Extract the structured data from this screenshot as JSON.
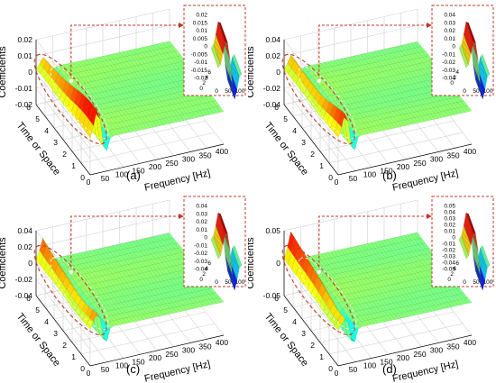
{
  "chart_data": [
    {
      "type": "surface",
      "panel_label": "(a)",
      "zlabel": "Coefficients",
      "ylabel": "Time or Space",
      "xlabel": "Frequency [Hz]",
      "zticks": [
        "0.02",
        "0.01",
        "0",
        "-0.01",
        "-0.02"
      ],
      "yticks": [
        "0",
        "1",
        "2",
        "3",
        "4",
        "5",
        "6"
      ],
      "xticks": [
        "0",
        "50",
        "100",
        "150",
        "200",
        "250",
        "300",
        "350",
        "400"
      ],
      "zlim": [
        -0.02,
        0.02
      ],
      "ylim": [
        0,
        6
      ],
      "xlim": [
        0,
        400
      ],
      "inset": {
        "zticks": [
          "0.02",
          "0.015",
          "0.01",
          "0.005",
          "0",
          "-0.005",
          "-0.01",
          "-0.015",
          "-0.02"
        ],
        "xticks": [
          "0",
          "50",
          "100"
        ],
        "yticks": [
          "6",
          "4",
          "2",
          "0"
        ]
      }
    },
    {
      "type": "surface",
      "panel_label": "(b)",
      "zlabel": "Coefficients",
      "ylabel": "Time or Space",
      "xlabel": "Frequency [Hz]",
      "zticks": [
        "0.04",
        "0.02",
        "0",
        "-0.02",
        "-0.04"
      ],
      "yticks": [
        "0",
        "1",
        "2",
        "3",
        "4",
        "5",
        "6"
      ],
      "xticks": [
        "0",
        "50",
        "100",
        "150",
        "200",
        "250",
        "300",
        "350",
        "400"
      ],
      "zlim": [
        -0.04,
        0.04
      ],
      "ylim": [
        0,
        6
      ],
      "xlim": [
        0,
        400
      ],
      "inset": {
        "zticks": [
          "0.04",
          "0.03",
          "0.02",
          "0.01",
          "0",
          "-0.01",
          "-0.02",
          "-0.03",
          "-0.04"
        ],
        "xticks": [
          "0",
          "50",
          "100"
        ],
        "yticks": [
          "4",
          "2",
          "0"
        ]
      }
    },
    {
      "type": "surface",
      "panel_label": "(c)",
      "zlabel": "Coefficients",
      "ylabel": "Time or Space",
      "xlabel": "Frequency [Hz]",
      "zticks": [
        "0.04",
        "0.02",
        "0",
        "-0.02",
        "-0.04"
      ],
      "yticks": [
        "0",
        "1",
        "2",
        "3",
        "4",
        "5",
        "6"
      ],
      "xticks": [
        "0",
        "50",
        "100",
        "150",
        "200",
        "250",
        "300",
        "350",
        "400"
      ],
      "zlim": [
        -0.04,
        0.04
      ],
      "ylim": [
        0,
        6
      ],
      "xlim": [
        0,
        400
      ],
      "inset": {
        "zticks": [
          "0.04",
          "0.03",
          "0.02",
          "0.01",
          "0",
          "-0.01",
          "-0.02",
          "-0.03",
          "-0.04"
        ],
        "xticks": [
          "0",
          "50",
          "100"
        ],
        "yticks": [
          "6",
          "4",
          "2",
          "0"
        ]
      }
    },
    {
      "type": "surface",
      "panel_label": "(d)",
      "zlabel": "Coefficients",
      "ylabel": "Time or Space",
      "xlabel": "Frequency [Hz]",
      "zticks": [
        "0.05",
        "0",
        "-0.05"
      ],
      "yticks": [
        "0",
        "1",
        "2",
        "3",
        "4",
        "5",
        "6"
      ],
      "xticks": [
        "0",
        "50",
        "100",
        "150",
        "200",
        "250",
        "300",
        "350",
        "400"
      ],
      "zlim": [
        -0.05,
        0.05
      ],
      "ylim": [
        0,
        6
      ],
      "xlim": [
        0,
        400
      ],
      "inset": {
        "zticks": [
          "0.05",
          "0.04",
          "0.03",
          "0.02",
          "0.01",
          "0",
          "-0.01",
          "-0.02",
          "-0.03",
          "-0.04",
          "-0.05"
        ],
        "xticks": [
          "0",
          "50",
          "100"
        ],
        "yticks": [
          "6",
          "4",
          "2",
          "0"
        ]
      }
    }
  ]
}
